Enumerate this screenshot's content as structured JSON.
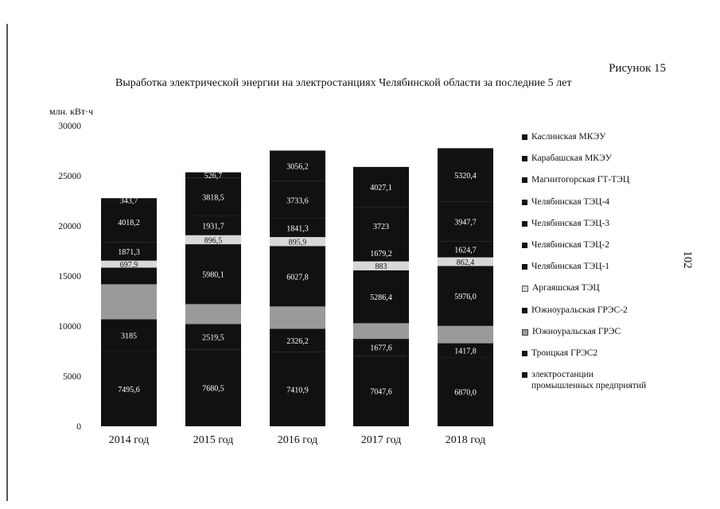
{
  "figure_label": "Рисунок 15",
  "page_number": "102",
  "colors": {
    "dark": "#111111",
    "light": "#d8d8d8",
    "mid": "#9a9a9a",
    "value_text": "#ffffff"
  },
  "chart_data": {
    "type": "bar",
    "stacked": true,
    "title": "Выработка электрической энергии на электростанциях Челябинской области за последние 5 лет",
    "ylabel": "млн. кВт·ч",
    "xlabel": "",
    "ylim": [
      0,
      30000
    ],
    "yticks": [
      0,
      5000,
      10000,
      15000,
      20000,
      25000,
      30000
    ],
    "categories": [
      "2014 год",
      "2015 год",
      "2016 год",
      "2017 год",
      "2018 год"
    ],
    "legend_position": "right",
    "grid": false,
    "series": [
      {
        "name": "электростанции промышленных предприятий",
        "values": [
          7495.6,
          7680.5,
          7410.9,
          7047.6,
          6870.0
        ],
        "labels": [
          "7495,6",
          "7680,5",
          "7410,9",
          "7047,6",
          "6870,0"
        ],
        "tone": "dark"
      },
      {
        "name": "Троицкая ГРЭС2",
        "values": [
          0,
          0,
          0,
          0,
          0
        ],
        "labels": [
          "",
          "",
          "",
          "",
          ""
        ],
        "tone": "dark"
      },
      {
        "name": "Южноуральская ГРЭС",
        "values": [
          3185,
          2519.5,
          2326.2,
          1677.6,
          1417.8
        ],
        "labels": [
          "3185",
          "2519,5",
          "2326,2",
          "1677,6",
          "1417,8"
        ],
        "tone": "dark"
      },
      {
        "name": "Южноуральская ГРЭС-2",
        "values": [
          3490,
          1990,
          2220,
          1560,
          1730
        ],
        "labels": [
          "",
          "",
          "",
          "",
          ""
        ],
        "tone": "mid"
      },
      {
        "name": "Аргаяшская ТЭЦ",
        "values": [
          1660,
          0,
          0,
          0,
          0
        ],
        "labels": [
          "",
          "",
          "",
          "",
          ""
        ],
        "tone": "dark"
      },
      {
        "name": "Челябинская ТЭЦ-1",
        "values": [
          0,
          5980.1,
          6027.8,
          5286.4,
          5976.0
        ],
        "labels": [
          "",
          "5980,1",
          "6027,8",
          "5286,4",
          "5976,0"
        ],
        "tone": "dark"
      },
      {
        "name": "Челябинская ТЭЦ-2",
        "values": [
          697.9,
          896.5,
          895.9,
          883,
          862.4
        ],
        "labels": [
          "697,9",
          "896,5",
          "895,9",
          "883",
          "862,4"
        ],
        "tone": "light"
      },
      {
        "name": "Челябинская ТЭЦ-3",
        "values": [
          1871.3,
          1931.7,
          1841.3,
          1679.2,
          1624.7
        ],
        "labels": [
          "1871,3",
          "1931,7",
          "1841,3",
          "1679,2",
          "1624,7"
        ],
        "tone": "dark"
      },
      {
        "name": "Челябинская ТЭЦ-4",
        "values": [
          4018.2,
          3818.5,
          3733.6,
          3723,
          3947.7
        ],
        "labels": [
          "4018,2",
          "3818,5",
          "3733,6",
          "3723",
          "3947,7"
        ],
        "tone": "dark"
      },
      {
        "name": "Магнитогорская ГТ-ТЭЦ",
        "values": [
          343.7,
          526.7,
          3056.2,
          4027.1,
          5320.4
        ],
        "labels": [
          "343,7",
          "526,7",
          "3056,2",
          "4027,1",
          "5320,4"
        ],
        "tone": "dark"
      },
      {
        "name": "Карабашская МКЭУ",
        "values": [
          0,
          0,
          0,
          0,
          0
        ],
        "labels": [
          "",
          "",
          "",
          "",
          ""
        ],
        "tone": "dark"
      },
      {
        "name": "Каслинская МКЭУ",
        "values": [
          0,
          0,
          0,
          0,
          0
        ],
        "labels": [
          "",
          "",
          "",
          "",
          ""
        ],
        "tone": "dark"
      }
    ],
    "legend": [
      {
        "label": "Каслинская МКЭУ",
        "tone": "dark"
      },
      {
        "label": "Карабашская МКЭУ",
        "tone": "dark"
      },
      {
        "label": "Магнитогорская ГТ-ТЭЦ",
        "tone": "dark"
      },
      {
        "label": "Челябинская ТЭЦ-4",
        "tone": "dark"
      },
      {
        "label": "Челябинская ТЭЦ-3",
        "tone": "dark"
      },
      {
        "label": "Челябинская ТЭЦ-2",
        "tone": "dark"
      },
      {
        "label": "Челябинская ТЭЦ-1",
        "tone": "dark"
      },
      {
        "label": "Аргаяшская ТЭЦ",
        "tone": "light"
      },
      {
        "label": "Южноуральская ГРЭС-2",
        "tone": "dark"
      },
      {
        "label": "Южноуральская ГРЭС",
        "tone": "mid"
      },
      {
        "label": "Троицкая ГРЭС2",
        "tone": "dark"
      },
      {
        "label": "электростанции\nпромышленных предприятий",
        "tone": "dark"
      }
    ]
  }
}
